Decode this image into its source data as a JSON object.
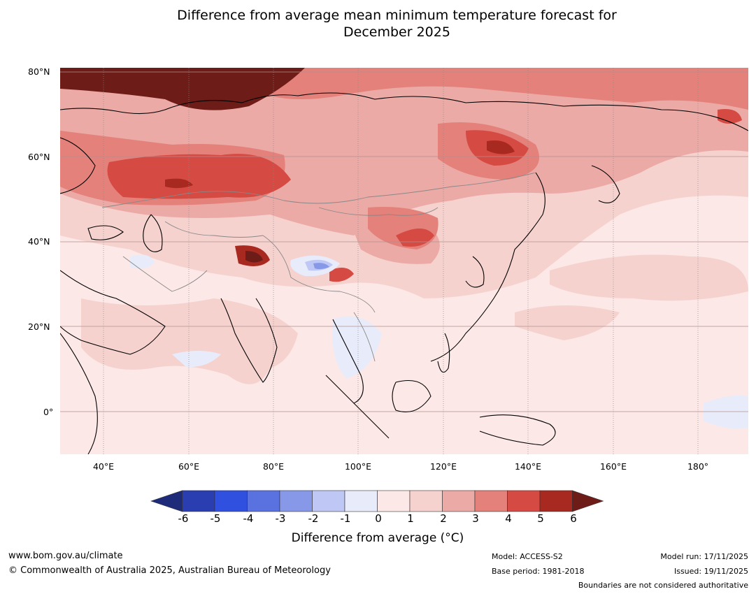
{
  "title": {
    "line1": "Difference from average mean minimum temperature forecast for",
    "line2": "December 2025"
  },
  "map": {
    "lat_labels": [
      "80°N",
      "60°N",
      "40°N",
      "20°N",
      "0°"
    ],
    "lon_labels": [
      "40°E",
      "60°E",
      "80°E",
      "100°E",
      "120°E",
      "140°E",
      "160°E",
      "180°"
    ],
    "extent": {
      "lon_min": 30,
      "lon_max": 192,
      "lat_min": -10,
      "lat_max": 80
    }
  },
  "colorbar": {
    "ticks": [
      "-6",
      "-5",
      "-4",
      "-3",
      "-2",
      "-1",
      "0",
      "1",
      "2",
      "3",
      "4",
      "5",
      "6"
    ],
    "colors": [
      "#1e2b7a",
      "#2a3eb1",
      "#3050e0",
      "#5a72e0",
      "#8898e8",
      "#bfc8f4",
      "#e8ecfa",
      "#fce8e6",
      "#f6d2cf",
      "#ecaaa6",
      "#e4817b",
      "#d54a42",
      "#a8291f",
      "#6d1c18"
    ],
    "label": "Difference from average (°C)"
  },
  "footer": {
    "website": "www.bom.gov.au/climate",
    "copyright": "© Commonwealth of Australia 2025, Australian Bureau of Meteorology",
    "model": "Model: ACCESS-S2",
    "base_period": "Base period: 1981-2018",
    "model_run": "Model run: 17/11/2025",
    "issued": "Issued: 19/11/2025",
    "disclaimer": "Boundaries are not considered authoritative"
  }
}
